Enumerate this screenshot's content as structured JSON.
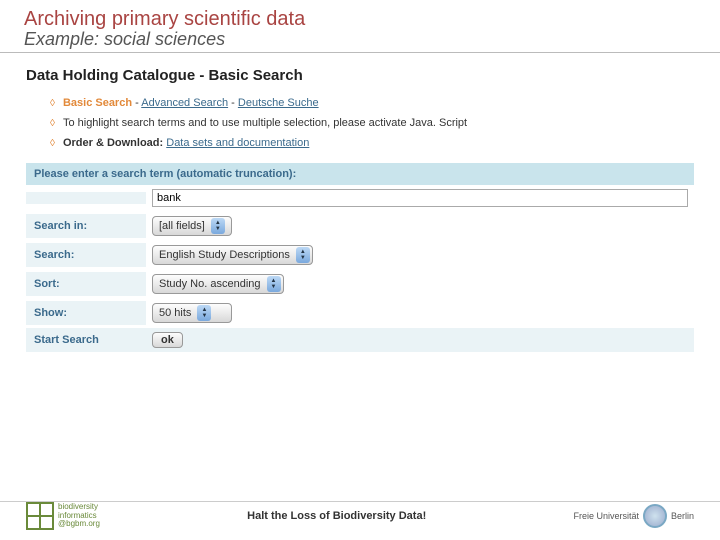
{
  "slide": {
    "title": "Archiving primary scientific data",
    "subtitle": "Example: social sciences"
  },
  "catalogue": {
    "heading": "Data Holding Catalogue - Basic Search",
    "bullets": {
      "b1": {
        "basic": "Basic Search",
        "sep1": " - ",
        "adv": "Advanced Search",
        "sep2": " - ",
        "de": "Deutsche Suche"
      },
      "b2": "To highlight search terms and to use multiple selection, please activate Java. Script",
      "b3label": "Order & Download:",
      "b3link": "Data sets and documentation"
    }
  },
  "form": {
    "header": "Please enter a search term (automatic truncation):",
    "term_value": "bank",
    "rows": {
      "search_in": {
        "label": "Search in:",
        "value": "[all fields]"
      },
      "search": {
        "label": "Search:",
        "value": "English Study Descriptions"
      },
      "sort": {
        "label": "Sort:",
        "value": "Study No. ascending"
      },
      "show": {
        "label": "Show:",
        "value": "50 hits"
      },
      "start": {
        "label": "Start Search",
        "button": "ok"
      }
    }
  },
  "footer": {
    "bdi_line1": "biodiversity",
    "bdi_line2": "informatics",
    "bdi_line3": "@bgbm.org",
    "tagline": "Halt the Loss of Biodiversity Data!",
    "fu1": "Freie Universität",
    "fu2": "Berlin"
  }
}
